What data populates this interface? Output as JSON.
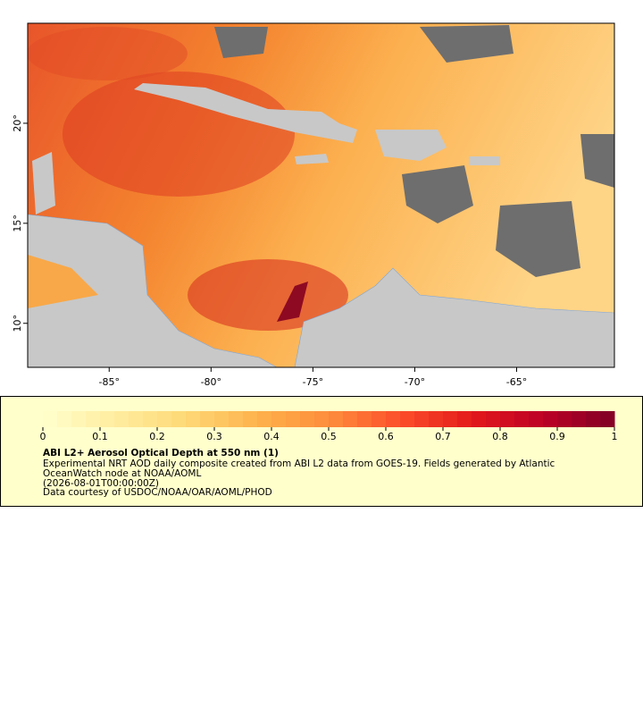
{
  "map": {
    "xlim": [
      -89,
      -60.2
    ],
    "ylim": [
      7.8,
      25
    ],
    "xticks": [
      {
        "value": -85,
        "label": "-85°"
      },
      {
        "value": -80,
        "label": "-80°"
      },
      {
        "value": -75,
        "label": "-75°"
      },
      {
        "value": -70,
        "label": "-70°"
      },
      {
        "value": -65,
        "label": "-65°"
      }
    ],
    "yticks": [
      {
        "value": 10,
        "label": "10°"
      },
      {
        "value": 15,
        "label": "15°"
      },
      {
        "value": 20,
        "label": "20°"
      }
    ]
  },
  "colorbar": {
    "lim": [
      0,
      1
    ],
    "ticks": [
      0,
      0.1,
      0.2,
      0.3,
      0.4,
      0.5,
      0.6,
      0.7,
      0.8,
      0.9,
      1
    ]
  },
  "legend": {
    "title": "ABI L2+ Aerosol Optical Depth at 550 nm (1)",
    "lines": [
      "Experimental NRT AOD daily composite created from ABI L2 data from GOES-19. Fields generated by Atlantic",
      "OceanWatch node at NOAA/AOML",
      "(2026-08-01T00:00:00Z)",
      "Data courtesy of USDOC/NOAA/OAR/AOML/PHOD"
    ]
  }
}
